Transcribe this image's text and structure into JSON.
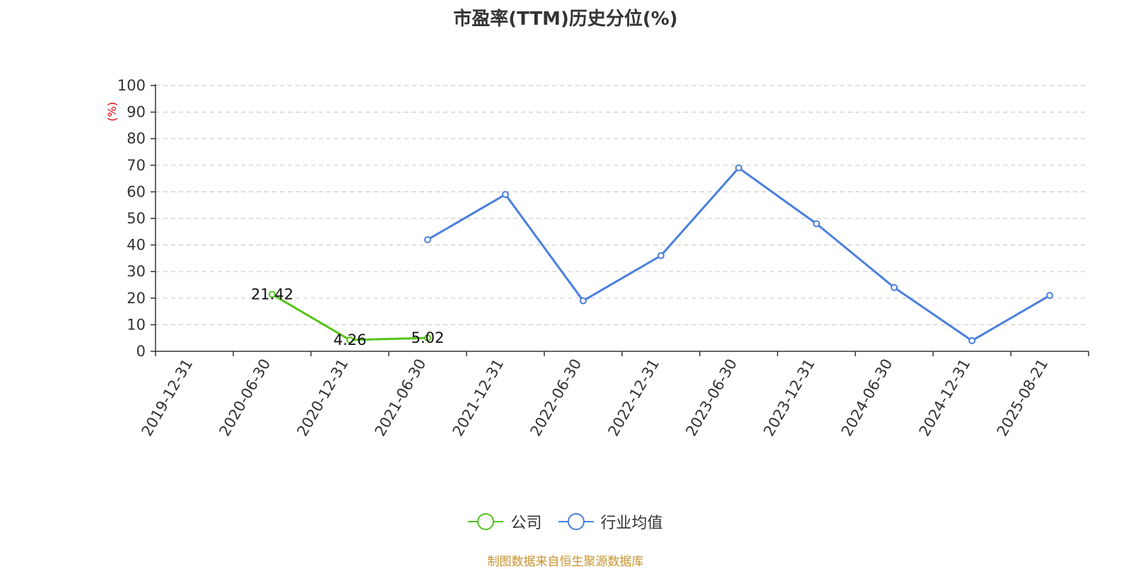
{
  "chart_data": {
    "type": "line",
    "title": "市盈率(TTM)历史分位(%)",
    "ylabel": "(%)",
    "ylim": [
      0,
      100
    ],
    "yticks": [
      0,
      10,
      20,
      30,
      40,
      50,
      60,
      70,
      80,
      90,
      100
    ],
    "grid": true,
    "legend_position": "bottom",
    "categories": [
      "2019-12-31",
      "2020-06-30",
      "2020-12-31",
      "2021-06-30",
      "2021-12-31",
      "2022-06-30",
      "2022-12-31",
      "2023-06-30",
      "2023-12-31",
      "2024-06-30",
      "2024-12-31",
      "2025-08-21"
    ],
    "series": [
      {
        "name": "公司",
        "color": "#52c41a",
        "values": [
          null,
          21.42,
          4.26,
          5.02,
          null,
          null,
          null,
          null,
          null,
          null,
          null,
          null
        ],
        "show_labels": true
      },
      {
        "name": "行业均值",
        "color": "#4a7fdc",
        "values": [
          null,
          null,
          null,
          42,
          59,
          19,
          36,
          69,
          48,
          24,
          4,
          21
        ],
        "show_labels": false
      }
    ],
    "source": "制图数据来自恒生聚源数据库"
  }
}
